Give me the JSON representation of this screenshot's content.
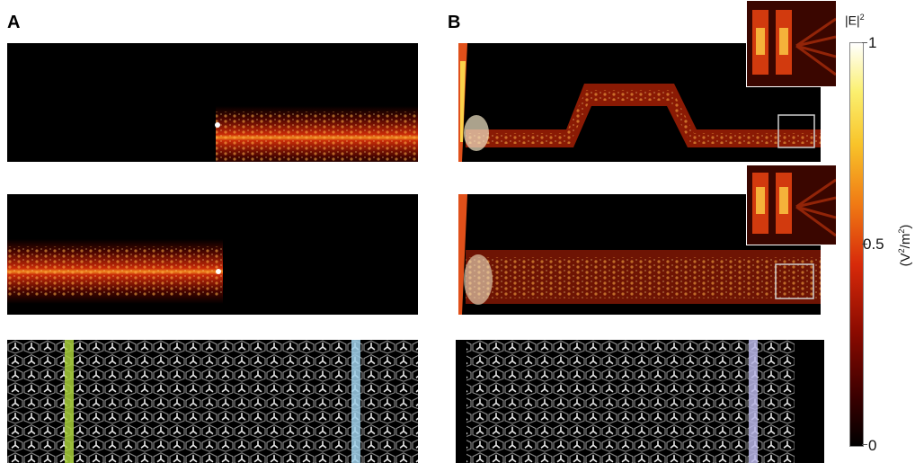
{
  "panels": {
    "A": {
      "label": "A"
    },
    "B": {
      "label": "B"
    }
  },
  "colorbar": {
    "quantity": "|E|",
    "quantity_exp": "2",
    "unit_prefix": "(V",
    "unit_exp1": "2",
    "unit_mid": "/m",
    "unit_exp2": "2",
    "unit_suffix": ")",
    "ticks": [
      {
        "value": 1,
        "label": "1"
      },
      {
        "value": 0.5,
        "label": "0.5"
      },
      {
        "value": 0,
        "label": "0"
      }
    ],
    "colormap": [
      "#000000",
      "#3a0000",
      "#8a0a00",
      "#d72a0a",
      "#f07a14",
      "#f8c42a",
      "#fbf070",
      "#ffffff"
    ]
  },
  "strip_colors": {
    "green": "#a8cf3a",
    "blue": "#9fd0ea",
    "lavender": "#b9b5e6"
  }
}
